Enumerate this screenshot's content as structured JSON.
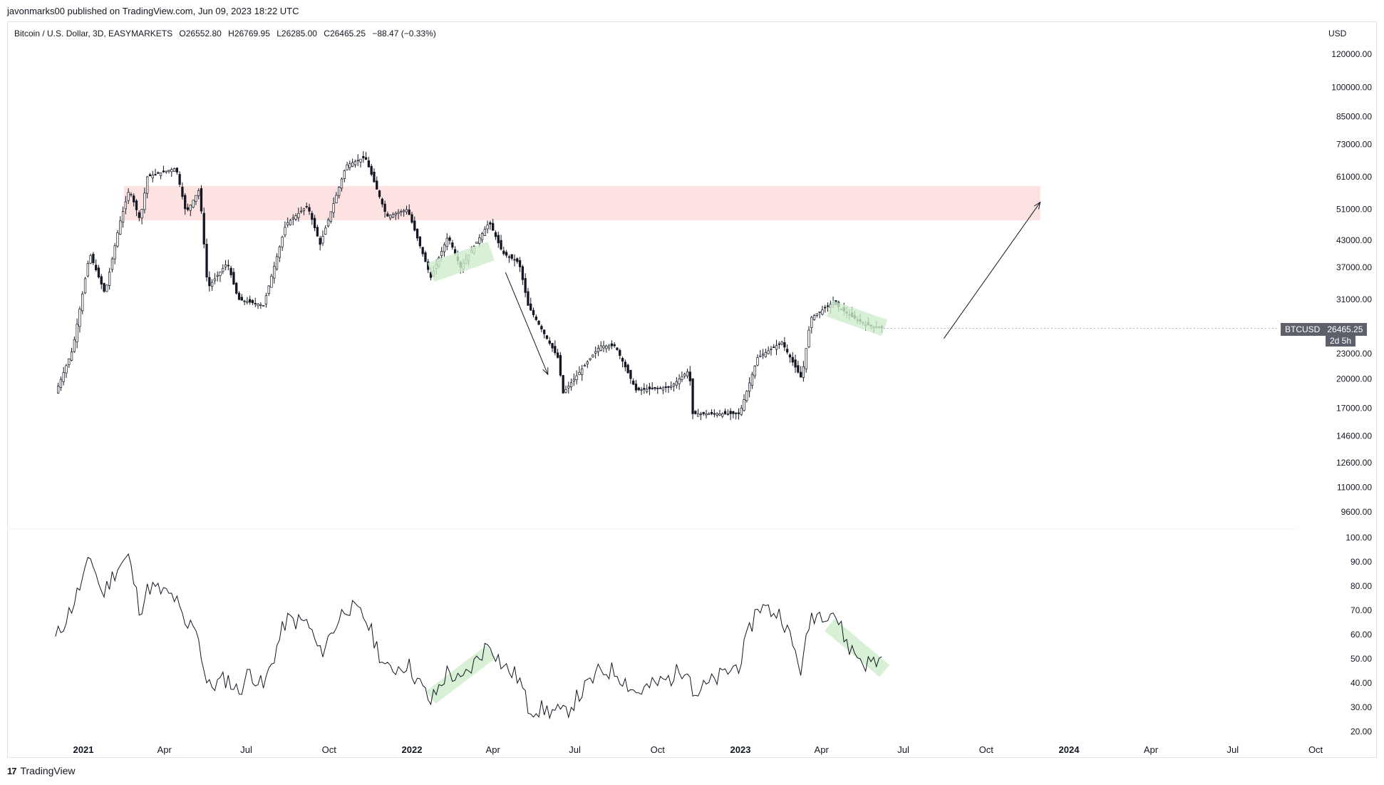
{
  "header": {
    "published": "javonmarks00 published on TradingView.com, Jun 09, 2023 18:22 UTC"
  },
  "legend": {
    "symbol": "Bitcoin / U.S. Dollar, 3D, EASYMARKETS",
    "open": "O26552.80",
    "high": "H26769.95",
    "low": "L26285.00",
    "close": "C26465.25",
    "change": "−88.47 (−0.33%)",
    "currency": "USD"
  },
  "price_badge": {
    "ticker": "BTCUSD",
    "price": "26465.25",
    "timer": "2d 5h"
  },
  "footer": {
    "brand": "TradingView",
    "logo_text": "17"
  },
  "colors": {
    "resistance_zone": "#fde2e2",
    "pattern_zone": "#cdeccc",
    "line": "#131722",
    "badge": "#5d606b"
  },
  "chart_data": [
    {
      "type": "candlestick",
      "title": "Bitcoin / U.S. Dollar, 3D, EASYMARKETS",
      "y_scale": "log",
      "y_ticks": [
        "120000.00",
        "100000.00",
        "85000.00",
        "73000.00",
        "61000.00",
        "51000.00",
        "43000.00",
        "37000.00",
        "31000.00",
        "23000.00",
        "20000.00",
        "17000.00",
        "14600.00",
        "12600.00",
        "11000.00",
        "9600.00"
      ],
      "x_ticks": [
        "2021",
        "Apr",
        "Jul",
        "Oct",
        "2022",
        "Apr",
        "Jul",
        "Oct",
        "2023",
        "Apr",
        "Jul",
        "Oct",
        "2024",
        "Apr",
        "Jul",
        "Oct"
      ],
      "price_path": [
        [
          "2020-12-01",
          18500
        ],
        [
          "2020-12-20",
          23500
        ],
        [
          "2021-01-08",
          40000
        ],
        [
          "2021-01-25",
          32000
        ],
        [
          "2021-02-10",
          47000
        ],
        [
          "2021-02-21",
          57000
        ],
        [
          "2021-03-05",
          48000
        ],
        [
          "2021-03-13",
          61000
        ],
        [
          "2021-04-14",
          64000
        ],
        [
          "2021-04-25",
          50000
        ],
        [
          "2021-05-10",
          57000
        ],
        [
          "2021-05-19",
          33000
        ],
        [
          "2021-06-10",
          38000
        ],
        [
          "2021-06-22",
          31000
        ],
        [
          "2021-07-20",
          30000
        ],
        [
          "2021-08-14",
          47000
        ],
        [
          "2021-09-07",
          52000
        ],
        [
          "2021-09-21",
          42000
        ],
        [
          "2021-10-20",
          65000
        ],
        [
          "2021-11-10",
          68000
        ],
        [
          "2021-12-04",
          49000
        ],
        [
          "2021-12-27",
          51000
        ],
        [
          "2022-01-22",
          35000
        ],
        [
          "2022-02-10",
          44000
        ],
        [
          "2022-02-24",
          37000
        ],
        [
          "2022-03-28",
          47500
        ],
        [
          "2022-04-12",
          40000
        ],
        [
          "2022-04-30",
          38000
        ],
        [
          "2022-05-10",
          30000
        ],
        [
          "2022-06-12",
          22500
        ],
        [
          "2022-06-18",
          18500
        ],
        [
          "2022-07-29",
          24000
        ],
        [
          "2022-08-15",
          24000
        ],
        [
          "2022-09-07",
          18800
        ],
        [
          "2022-10-15",
          19100
        ],
        [
          "2022-11-05",
          21000
        ],
        [
          "2022-11-09",
          16500
        ],
        [
          "2022-12-31",
          16500
        ],
        [
          "2023-01-20",
          22500
        ],
        [
          "2023-02-16",
          24500
        ],
        [
          "2023-03-10",
          20000
        ],
        [
          "2023-03-20",
          28000
        ],
        [
          "2023-04-14",
          30500
        ],
        [
          "2023-05-01",
          28500
        ],
        [
          "2023-05-20",
          27000
        ],
        [
          "2023-06-09",
          26465.25
        ]
      ],
      "annotations": [
        {
          "type": "zone",
          "label": "resistance",
          "price_range": [
            48000,
            58000
          ],
          "date_range": [
            "2021-02-15",
            "2023-11-30"
          ]
        },
        {
          "type": "channel",
          "date_range": [
            "2022-01-22",
            "2022-03-30"
          ]
        },
        {
          "type": "arrow",
          "from": [
            "2022-04-15",
            36000
          ],
          "to": [
            "2022-06-01",
            20500
          ]
        },
        {
          "type": "channel",
          "date_range": [
            "2023-04-10",
            "2023-06-10"
          ]
        },
        {
          "type": "arrow",
          "from": [
            "2023-08-15",
            25000
          ],
          "to": [
            "2023-11-30",
            53000
          ]
        }
      ]
    },
    {
      "type": "line",
      "y_ticks": [
        "100.00",
        "90.00",
        "80.00",
        "70.00",
        "60.00",
        "50.00",
        "40.00",
        "30.00",
        "20.00"
      ],
      "ylim": [
        20,
        100
      ],
      "points": [
        [
          "2020-12-01",
          58
        ],
        [
          "2020-12-20",
          72
        ],
        [
          "2021-01-10",
          92
        ],
        [
          "2021-01-22",
          76
        ],
        [
          "2021-02-08",
          88
        ],
        [
          "2021-02-20",
          92
        ],
        [
          "2021-03-05",
          70
        ],
        [
          "2021-03-15",
          80
        ],
        [
          "2021-04-13",
          75
        ],
        [
          "2021-04-25",
          62
        ],
        [
          "2021-05-05",
          66
        ],
        [
          "2021-05-19",
          38
        ],
        [
          "2021-06-10",
          42
        ],
        [
          "2021-06-22",
          36
        ],
        [
          "2021-07-05",
          45
        ],
        [
          "2021-07-20",
          38
        ],
        [
          "2021-08-14",
          66
        ],
        [
          "2021-09-07",
          65
        ],
        [
          "2021-09-21",
          52
        ],
        [
          "2021-10-20",
          72
        ],
        [
          "2021-11-10",
          67
        ],
        [
          "2021-12-04",
          45
        ],
        [
          "2021-12-27",
          48
        ],
        [
          "2022-01-22",
          32
        ],
        [
          "2022-02-10",
          45
        ],
        [
          "2022-02-24",
          40
        ],
        [
          "2022-03-28",
          57
        ],
        [
          "2022-04-12",
          47
        ],
        [
          "2022-04-30",
          42
        ],
        [
          "2022-05-10",
          30
        ],
        [
          "2022-06-12",
          28
        ],
        [
          "2022-06-18",
          27
        ],
        [
          "2022-07-29",
          45
        ],
        [
          "2022-08-15",
          45
        ],
        [
          "2022-09-07",
          36
        ],
        [
          "2022-10-15",
          42
        ],
        [
          "2022-11-05",
          48
        ],
        [
          "2022-11-09",
          35
        ],
        [
          "2022-12-31",
          48
        ],
        [
          "2023-01-20",
          72
        ],
        [
          "2023-02-16",
          68
        ],
        [
          "2023-03-10",
          45
        ],
        [
          "2023-03-20",
          68
        ],
        [
          "2023-04-14",
          70
        ],
        [
          "2023-05-01",
          55
        ],
        [
          "2023-05-20",
          48
        ],
        [
          "2023-06-09",
          50
        ]
      ],
      "annotations": [
        {
          "type": "channel",
          "date_range": [
            "2022-01-22",
            "2022-03-30"
          ]
        },
        {
          "type": "channel",
          "date_range": [
            "2023-04-10",
            "2023-06-10"
          ]
        }
      ]
    }
  ]
}
